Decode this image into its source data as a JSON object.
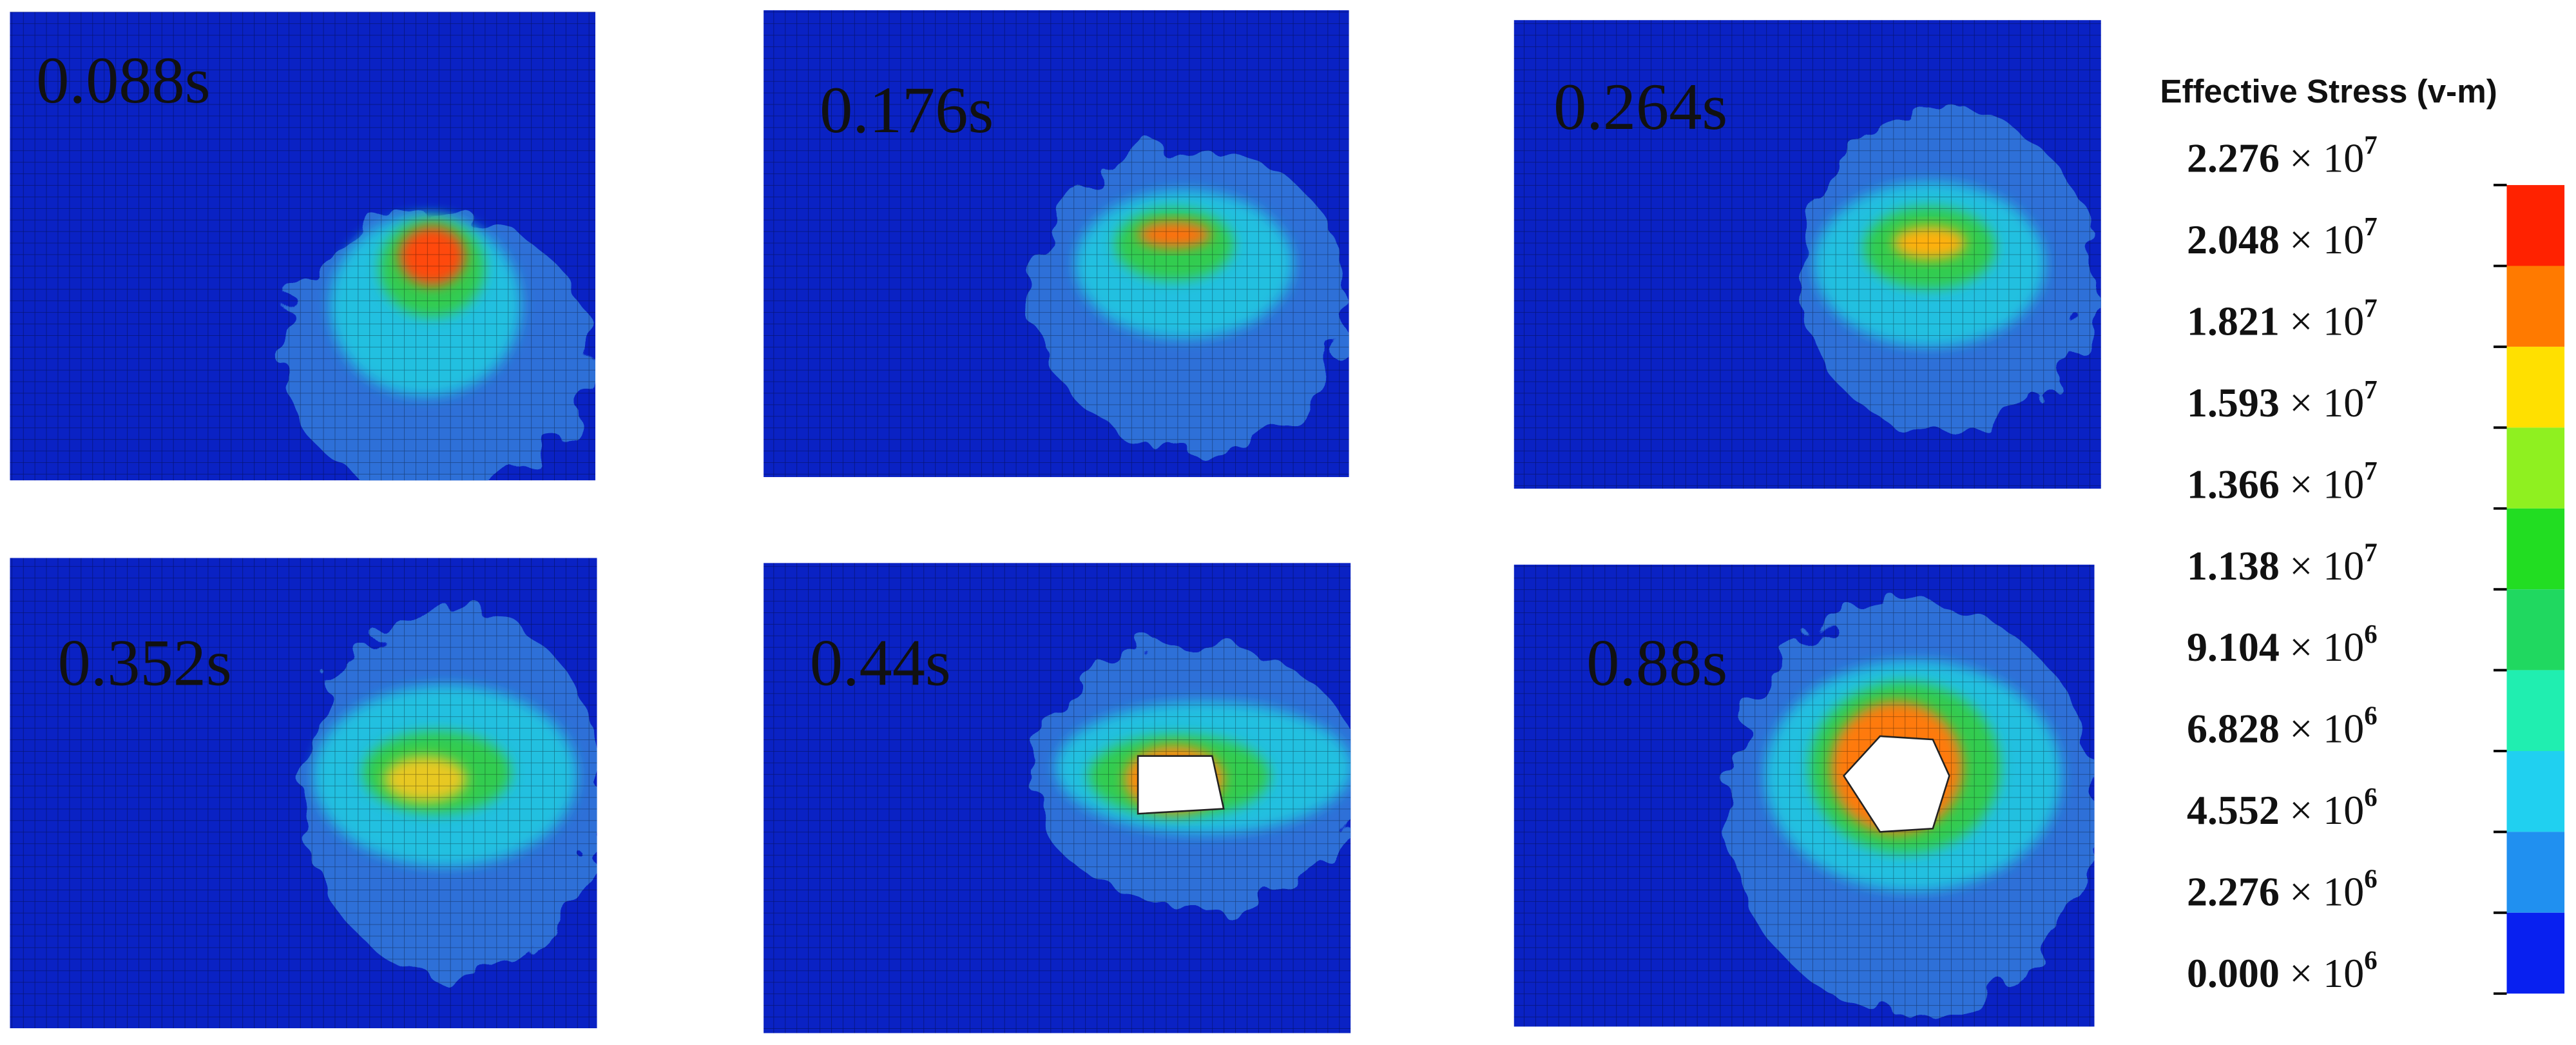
{
  "panels": [
    {
      "label": "0.088s"
    },
    {
      "label": "0.176s"
    },
    {
      "label": "0.264s"
    },
    {
      "label": "0.352s"
    },
    {
      "label": "0.44s"
    },
    {
      "label": "0.88s"
    }
  ],
  "legend": {
    "title": "Effective Stress (v-m)",
    "ticks": [
      {
        "value": "2.276",
        "multiplier": "× 10",
        "exponent": "7"
      },
      {
        "value": "2.048",
        "multiplier": "× 10",
        "exponent": "7"
      },
      {
        "value": "1.821",
        "multiplier": "× 10",
        "exponent": "7"
      },
      {
        "value": "1.593",
        "multiplier": "× 10",
        "exponent": "7"
      },
      {
        "value": "1.366",
        "multiplier": "× 10",
        "exponent": "7"
      },
      {
        "value": "1.138",
        "multiplier": "× 10",
        "exponent": "7"
      },
      {
        "value": "9.104",
        "multiplier": "× 10",
        "exponent": "6"
      },
      {
        "value": "6.828",
        "multiplier": "× 10",
        "exponent": "6"
      },
      {
        "value": "4.552",
        "multiplier": "× 10",
        "exponent": "6"
      },
      {
        "value": "2.276",
        "multiplier": "× 10",
        "exponent": "6"
      },
      {
        "value": "0.000",
        "multiplier": "× 10",
        "exponent": "6"
      }
    ]
  }
}
